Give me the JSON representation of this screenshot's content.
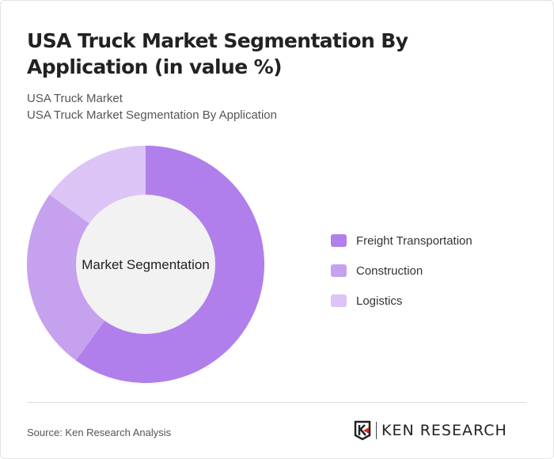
{
  "title": "USA Truck Market Segmentation By Application (in value %)",
  "subtitle1": "USA Truck Market",
  "subtitle2": "USA Truck Market Segmentation By Application",
  "source": "Source: Ken Research Analysis",
  "logo_text": "KEN RESEARCH",
  "chart_data": {
    "type": "pie",
    "variant": "donut",
    "center_label": "Market Segmentation",
    "categories": [
      "Freight Transportation",
      "Construction",
      "Logistics"
    ],
    "values": [
      60,
      25,
      15
    ],
    "colors": [
      "#b07fec",
      "#c6a1ee",
      "#dcc5f6"
    ],
    "legend_position": "right"
  }
}
